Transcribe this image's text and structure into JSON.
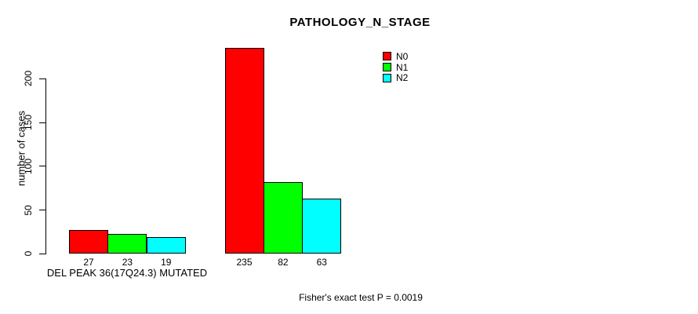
{
  "chart_data": {
    "type": "bar",
    "title": "PATHOLOGY_N_STAGE",
    "ylabel": "number of cases",
    "xlabel": "DEL PEAK 36(17Q24.3) MUTATED",
    "footnote": "Fisher's exact test P = 0.0019",
    "yticks": [
      0,
      50,
      100,
      150,
      200
    ],
    "ylim": [
      0,
      240
    ],
    "grid": false,
    "bar_value_labels_shown": true,
    "legend_position": "top-right",
    "categories": [
      "DEL PEAK 36(17Q24.3) MUTATED",
      ""
    ],
    "series": [
      {
        "name": "N0",
        "color": "#FF0000",
        "values": [
          27,
          235
        ]
      },
      {
        "name": "N1",
        "color": "#00FF00",
        "values": [
          23,
          82
        ]
      },
      {
        "name": "N2",
        "color": "#00FFFF",
        "values": [
          19,
          63
        ]
      }
    ]
  },
  "colors": {
    "background": "#FFFFFF",
    "axis": "#000000",
    "text": "#000000"
  }
}
